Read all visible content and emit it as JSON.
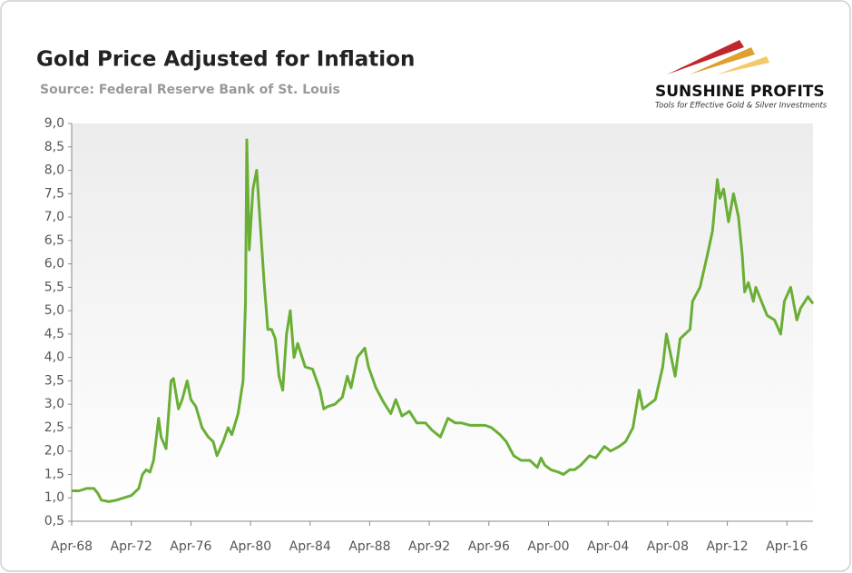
{
  "chart_data": {
    "type": "line",
    "title": "Gold Price Adjusted for Inflation",
    "subtitle": "Source: Federal Reserve Bank of St. Louis",
    "logo": {
      "name": "SUNSHINE PROFITS",
      "tagline": "Tools for Effective Gold & Silver Investments"
    },
    "color": "#6aaf35",
    "grid": false,
    "xlim": [
      "1968-04",
      "2018-01"
    ],
    "xticks": [
      {
        "value": "1968-04",
        "label": "Apr-68"
      },
      {
        "value": "1972-04",
        "label": "Apr-72"
      },
      {
        "value": "1976-04",
        "label": "Apr-76"
      },
      {
        "value": "1980-04",
        "label": "Apr-80"
      },
      {
        "value": "1984-04",
        "label": "Apr-84"
      },
      {
        "value": "1988-04",
        "label": "Apr-88"
      },
      {
        "value": "1992-04",
        "label": "Apr-92"
      },
      {
        "value": "1996-04",
        "label": "Apr-96"
      },
      {
        "value": "2000-04",
        "label": "Apr-00"
      },
      {
        "value": "2004-04",
        "label": "Apr-04"
      },
      {
        "value": "2008-04",
        "label": "Apr-08"
      },
      {
        "value": "2012-04",
        "label": "Apr-12"
      },
      {
        "value": "2016-04",
        "label": "Apr-16"
      }
    ],
    "ylim": [
      0.5,
      9
    ],
    "yticks": [
      {
        "value": 0.5,
        "label": "0,5"
      },
      {
        "value": 1,
        "label": "1,0"
      },
      {
        "value": 1.5,
        "label": "1,5"
      },
      {
        "value": 2,
        "label": "2,0"
      },
      {
        "value": 2.5,
        "label": "2,5"
      },
      {
        "value": 3,
        "label": "3,0"
      },
      {
        "value": 3.5,
        "label": "3,5"
      },
      {
        "value": 4,
        "label": "4,0"
      },
      {
        "value": 4.5,
        "label": "4,5"
      },
      {
        "value": 5,
        "label": "5,0"
      },
      {
        "value": 5.5,
        "label": "5,5"
      },
      {
        "value": 6,
        "label": "6,0"
      },
      {
        "value": 6.5,
        "label": "6,5"
      },
      {
        "value": 7,
        "label": "7,0"
      },
      {
        "value": 7.5,
        "label": "7,5"
      },
      {
        "value": 8,
        "label": "8,0"
      },
      {
        "value": 8.5,
        "label": "8,5"
      },
      {
        "value": 9,
        "label": "9,0"
      }
    ],
    "x": [
      "1968-04",
      "1968-10",
      "1969-04",
      "1969-10",
      "1970-01",
      "1970-04",
      "1970-10",
      "1971-04",
      "1971-10",
      "1972-04",
      "1972-10",
      "1973-01",
      "1973-04",
      "1973-07",
      "1973-10",
      "1974-02",
      "1974-04",
      "1974-08",
      "1974-12",
      "1975-02",
      "1975-06",
      "1975-09",
      "1976-01",
      "1976-04",
      "1976-08",
      "1977-01",
      "1977-06",
      "1977-10",
      "1978-01",
      "1978-06",
      "1978-10",
      "1979-01",
      "1979-06",
      "1979-10",
      "1979-12",
      "1980-01",
      "1980-03",
      "1980-06",
      "1980-09",
      "1980-12",
      "1981-03",
      "1981-06",
      "1981-09",
      "1981-12",
      "1982-03",
      "1982-06",
      "1982-09",
      "1982-12",
      "1983-03",
      "1983-06",
      "1983-12",
      "1984-06",
      "1984-12",
      "1985-03",
      "1985-06",
      "1985-12",
      "1986-06",
      "1986-10",
      "1987-01",
      "1987-06",
      "1987-12",
      "1988-03",
      "1988-09",
      "1989-03",
      "1989-09",
      "1990-01",
      "1990-06",
      "1990-12",
      "1991-06",
      "1992-01",
      "1992-06",
      "1993-01",
      "1993-07",
      "1994-01",
      "1994-06",
      "1995-01",
      "1995-06",
      "1996-01",
      "1996-06",
      "1997-01",
      "1997-06",
      "1997-12",
      "1998-06",
      "1999-01",
      "1999-07",
      "1999-10",
      "2000-01",
      "2000-06",
      "2000-12",
      "2001-04",
      "2001-09",
      "2002-01",
      "2002-06",
      "2003-01",
      "2003-06",
      "2004-01",
      "2004-06",
      "2005-01",
      "2005-06",
      "2005-12",
      "2006-05",
      "2006-08",
      "2007-01",
      "2007-06",
      "2007-12",
      "2008-03",
      "2008-10",
      "2009-02",
      "2009-10",
      "2009-12",
      "2010-06",
      "2010-12",
      "2011-04",
      "2011-08",
      "2011-10",
      "2012-01",
      "2012-05",
      "2012-09",
      "2013-01",
      "2013-04",
      "2013-06",
      "2013-09",
      "2014-01",
      "2014-03",
      "2014-12",
      "2015-06",
      "2015-11",
      "2016-02",
      "2016-07",
      "2016-12",
      "2017-03",
      "2017-09",
      "2018-01"
    ],
    "values": [
      1.15,
      1.15,
      1.2,
      1.2,
      1.1,
      0.95,
      0.92,
      0.95,
      1.0,
      1.05,
      1.2,
      1.5,
      1.6,
      1.55,
      1.8,
      2.7,
      2.3,
      2.05,
      3.5,
      3.55,
      2.9,
      3.1,
      3.5,
      3.1,
      2.95,
      2.5,
      2.3,
      2.2,
      1.9,
      2.2,
      2.5,
      2.35,
      2.8,
      3.5,
      5.2,
      8.65,
      6.3,
      7.6,
      8.0,
      6.8,
      5.6,
      4.6,
      4.6,
      4.4,
      3.6,
      3.3,
      4.5,
      5.0,
      4.0,
      4.3,
      3.8,
      3.75,
      3.3,
      2.9,
      2.95,
      3.0,
      3.15,
      3.6,
      3.35,
      4.0,
      4.2,
      3.8,
      3.35,
      3.05,
      2.8,
      3.1,
      2.75,
      2.85,
      2.6,
      2.6,
      2.45,
      2.3,
      2.7,
      2.6,
      2.6,
      2.55,
      2.55,
      2.55,
      2.5,
      2.35,
      2.2,
      1.9,
      1.8,
      1.8,
      1.65,
      1.85,
      1.7,
      1.6,
      1.55,
      1.5,
      1.6,
      1.6,
      1.7,
      1.9,
      1.85,
      2.1,
      2.0,
      2.1,
      2.2,
      2.5,
      3.3,
      2.9,
      3.0,
      3.1,
      3.8,
      4.5,
      3.6,
      4.4,
      4.6,
      5.2,
      5.5,
      6.2,
      6.7,
      7.8,
      7.4,
      7.6,
      6.9,
      7.5,
      7.0,
      6.2,
      5.4,
      5.6,
      5.2,
      5.5,
      4.9,
      4.8,
      4.5,
      5.2,
      5.5,
      4.8,
      5.05,
      5.3,
      5.15
    ]
  }
}
